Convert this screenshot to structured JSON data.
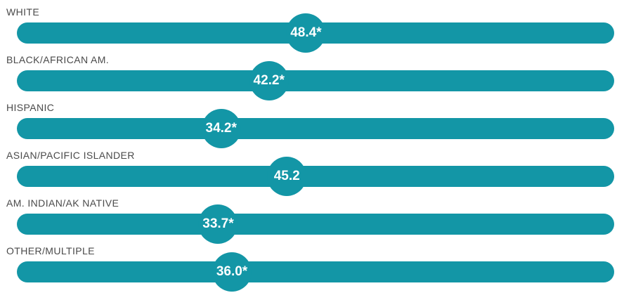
{
  "chart_data": {
    "type": "bar",
    "categories": [
      "WHITE",
      "BLACK/AFRICAN AM.",
      "HISPANIC",
      "ASIAN/PACIFIC ISLANDER",
      "AM. INDIAN/AK NATIVE",
      "OTHER/MULTIPLE"
    ],
    "values": [
      48.4,
      42.2,
      34.2,
      45.2,
      33.7,
      36.0
    ],
    "value_labels": [
      "48.4*",
      "42.2*",
      "34.2*",
      "45.2",
      "33.7*",
      "36.0*"
    ],
    "xlim": [
      0,
      100
    ],
    "grid": false,
    "colors": {
      "bar": "#1396a6",
      "label_text": "#ffffff",
      "category_text": "#4a4a4a"
    }
  }
}
